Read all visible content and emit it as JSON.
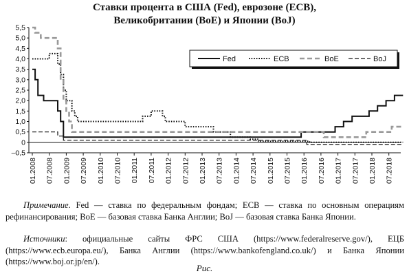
{
  "title_lines": [
    "Ставки процента в США (Fed), еврозоне (ECB),",
    "Великобритании (BoE) и Японии (BoJ)"
  ],
  "notes": {
    "note1_lead": "Примечание",
    "note1_text": ". Fed — ставка по федеральным фондам; ECB — ставка по основным операциям рефинансирования; BoE — базовая ставка Банка Англии; BoJ — базовая ставка Банка Японии.",
    "note2_lead": "Источники",
    "note2_text": ": официальные сайты ФРС США (https://www.federalreserve.gov/), ЕЦБ (https://www.ecb.europa.eu/), Банка Англии (https://www.bankofengland.co.uk/) и Банка Японии (https://www.boj.or.jp/en/)."
  },
  "caption": "Рис.",
  "chart_data": {
    "type": "line",
    "ylim": [
      -0.5,
      5.5
    ],
    "yticks": [
      -0.5,
      0,
      0.5,
      1,
      1.5,
      2,
      2.5,
      3,
      3.5,
      4,
      4.5,
      5,
      5.5
    ],
    "ytick_labels": [
      "–0,5",
      "0",
      "0,5",
      "1,0",
      "1,5",
      "2,0",
      "2,5",
      "3,0",
      "3,5",
      "4,0",
      "4,5",
      "5,0",
      "5,5"
    ],
    "xtick_labels": [
      "01.2008",
      "07.2008",
      "01.2009",
      "07.2009",
      "01.2010",
      "07.2010",
      "01.2011",
      "07.2011",
      "01.2012",
      "07.2012",
      "01.2013",
      "07.2013",
      "01.2014",
      "07.2014",
      "01.2015",
      "07.2015",
      "01.2016",
      "07.2016",
      "01.2017",
      "07.2017",
      "01.2018",
      "07.2018"
    ],
    "legend": {
      "position": "top-right",
      "entries": [
        "Fed",
        "ECB",
        "BoE",
        "BoJ"
      ]
    },
    "series": [
      {
        "name": "Fed",
        "style": "solid",
        "color": "#111111",
        "points": [
          [
            "2008-01",
            3.5
          ],
          [
            "2008-02",
            3.0
          ],
          [
            "2008-03",
            2.25
          ],
          [
            "2008-05",
            2.0
          ],
          [
            "2008-10",
            1.5
          ],
          [
            "2008-11",
            1.0
          ],
          [
            "2008-12",
            0.25
          ],
          [
            "2015-12",
            0.5
          ],
          [
            "2016-12",
            0.75
          ],
          [
            "2017-03",
            1.0
          ],
          [
            "2017-06",
            1.25
          ],
          [
            "2017-12",
            1.5
          ],
          [
            "2018-03",
            1.75
          ],
          [
            "2018-06",
            2.0
          ],
          [
            "2018-09",
            2.25
          ],
          [
            "2018-12",
            2.25
          ]
        ]
      },
      {
        "name": "ECB",
        "style": "dotted",
        "color": "#111111",
        "points": [
          [
            "2008-01",
            4.0
          ],
          [
            "2008-07",
            4.25
          ],
          [
            "2008-10",
            3.75
          ],
          [
            "2008-11",
            3.25
          ],
          [
            "2008-12",
            2.5
          ],
          [
            "2009-01",
            2.0
          ],
          [
            "2009-03",
            1.5
          ],
          [
            "2009-04",
            1.25
          ],
          [
            "2009-05",
            1.0
          ],
          [
            "2011-04",
            1.25
          ],
          [
            "2011-07",
            1.5
          ],
          [
            "2011-11",
            1.25
          ],
          [
            "2011-12",
            1.0
          ],
          [
            "2012-07",
            0.75
          ],
          [
            "2013-05",
            0.5
          ],
          [
            "2013-11",
            0.25
          ],
          [
            "2014-06",
            0.15
          ],
          [
            "2014-09",
            0.05
          ],
          [
            "2016-03",
            0.0
          ],
          [
            "2018-12",
            0.0
          ]
        ]
      },
      {
        "name": "BoE",
        "style": "dashed",
        "color": "#999999",
        "points": [
          [
            "2008-01",
            5.5
          ],
          [
            "2008-02",
            5.25
          ],
          [
            "2008-04",
            5.0
          ],
          [
            "2008-10",
            4.5
          ],
          [
            "2008-11",
            3.0
          ],
          [
            "2008-12",
            2.0
          ],
          [
            "2009-01",
            1.5
          ],
          [
            "2009-02",
            1.0
          ],
          [
            "2009-03",
            0.5
          ],
          [
            "2016-08",
            0.25
          ],
          [
            "2017-11",
            0.5
          ],
          [
            "2018-08",
            0.75
          ],
          [
            "2018-12",
            0.75
          ]
        ]
      },
      {
        "name": "BoJ",
        "style": "dashed",
        "color": "#111111",
        "points": [
          [
            "2008-01",
            0.5
          ],
          [
            "2008-10",
            0.3
          ],
          [
            "2008-12",
            0.1
          ],
          [
            "2016-02",
            -0.1
          ],
          [
            "2018-12",
            -0.1
          ]
        ]
      }
    ]
  }
}
